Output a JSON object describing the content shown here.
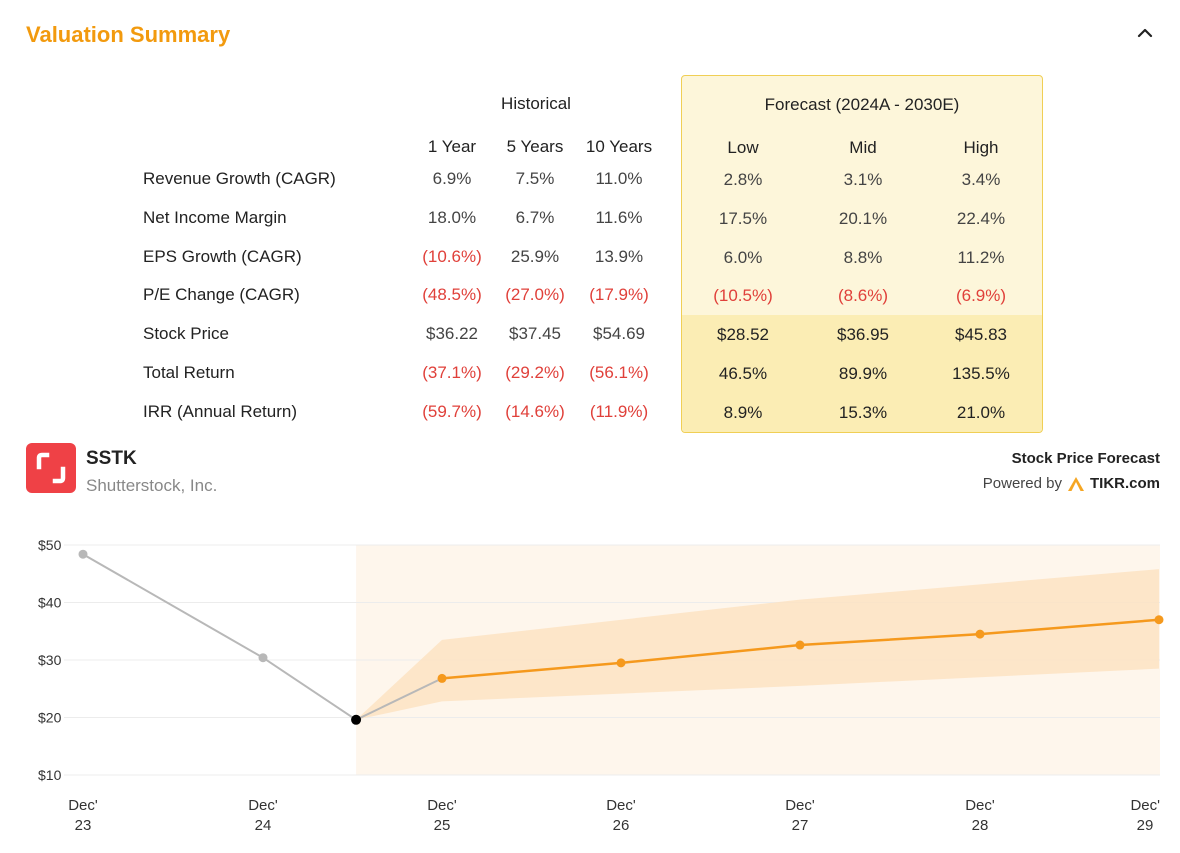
{
  "header": {
    "title": "Valuation Summary",
    "collapse_icon": "chevron-up-icon"
  },
  "table": {
    "historical_label": "Historical",
    "forecast_label": "Forecast (2024A - 2030E)",
    "historical_columns": [
      "1 Year",
      "5 Years",
      "10 Years"
    ],
    "forecast_columns": [
      "Low",
      "Mid",
      "High"
    ],
    "rows": [
      {
        "label": "Revenue Growth (CAGR)",
        "historical": [
          "6.9%",
          "7.5%",
          "11.0%"
        ],
        "forecast": [
          "2.8%",
          "3.1%",
          "3.4%"
        ]
      },
      {
        "label": "Net Income Margin",
        "historical": [
          "18.0%",
          "6.7%",
          "11.6%"
        ],
        "forecast": [
          "17.5%",
          "20.1%",
          "22.4%"
        ]
      },
      {
        "label": "EPS Growth (CAGR)",
        "historical": [
          "(10.6%)",
          "25.9%",
          "13.9%"
        ],
        "forecast": [
          "6.0%",
          "8.8%",
          "11.2%"
        ]
      },
      {
        "label": "P/E Change (CAGR)",
        "historical": [
          "(48.5%)",
          "(27.0%)",
          "(17.9%)"
        ],
        "forecast": [
          "(10.5%)",
          "(8.6%)",
          "(6.9%)"
        ]
      },
      {
        "label": "Stock Price",
        "historical": [
          "$36.22",
          "$37.45",
          "$54.69"
        ],
        "forecast": [
          "$28.52",
          "$36.95",
          "$45.83"
        ]
      },
      {
        "label": "Total Return",
        "historical": [
          "(37.1%)",
          "(29.2%)",
          "(56.1%)"
        ],
        "forecast": [
          "46.5%",
          "89.9%",
          "135.5%"
        ]
      },
      {
        "label": "IRR (Annual Return)",
        "historical": [
          "(59.7%)",
          "(14.6%)",
          "(11.9%)"
        ],
        "forecast": [
          "8.9%",
          "15.3%",
          "21.0%"
        ]
      }
    ]
  },
  "company": {
    "ticker": "SSTK",
    "name": "Shutterstock, Inc.",
    "logo_icon": "shutterstock-logo-icon"
  },
  "chart_header": {
    "title": "Stock Price Forecast",
    "powered_by": "Powered by",
    "brand": "TIKR.com",
    "brand_icon": "tikr-logo-icon"
  },
  "colors": {
    "accent": "#f29a0e",
    "negative": "#e0403a",
    "historical_line": "#b8b8b8",
    "forecast_line": "#f5991d"
  },
  "chart_data": {
    "type": "line",
    "title": "Stock Price Forecast",
    "y_ticks": [
      "$50",
      "$40",
      "$30",
      "$20",
      "$10"
    ],
    "ylim": [
      10,
      50
    ],
    "x_ticks": [
      {
        "line1": "Dec'",
        "line2": "23"
      },
      {
        "line1": "Dec'",
        "line2": "24"
      },
      {
        "line1": "Dec'",
        "line2": "25"
      },
      {
        "line1": "Dec'",
        "line2": "26"
      },
      {
        "line1": "Dec'",
        "line2": "27"
      },
      {
        "line1": "Dec'",
        "line2": "28"
      },
      {
        "line1": "Dec'",
        "line2": "29"
      }
    ],
    "historical": {
      "name": "Historical",
      "x": [
        0,
        1,
        1.52
      ],
      "values": [
        48.4,
        30.4,
        19.6
      ]
    },
    "forecast_mid": {
      "name": "Mid",
      "x": [
        2,
        3,
        4,
        5,
        6
      ],
      "values": [
        26.8,
        29.5,
        32.6,
        34.5,
        37.0
      ]
    },
    "forecast_connector": {
      "x": [
        1.52,
        2
      ],
      "values": [
        19.6,
        26.8
      ]
    },
    "forecast_band": {
      "x": [
        1.52,
        2,
        4,
        6
      ],
      "low": [
        19.6,
        22.8,
        25.5,
        28.5
      ],
      "high": [
        19.6,
        33.5,
        40.5,
        45.8
      ]
    },
    "forecast_region_start_x": 1.52
  }
}
